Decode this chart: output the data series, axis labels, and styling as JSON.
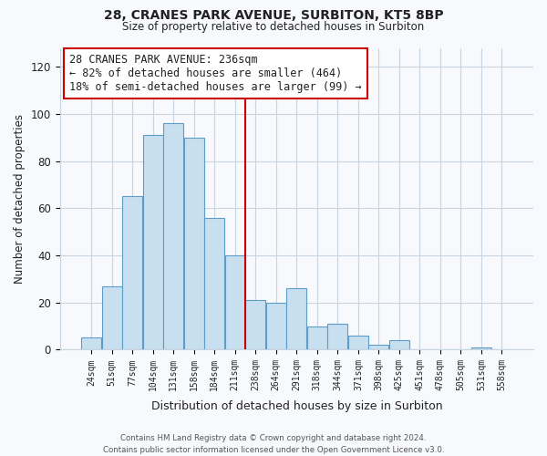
{
  "title": "28, CRANES PARK AVENUE, SURBITON, KT5 8BP",
  "subtitle": "Size of property relative to detached houses in Surbiton",
  "xlabel": "Distribution of detached houses by size in Surbiton",
  "ylabel": "Number of detached properties",
  "categories": [
    "24sqm",
    "51sqm",
    "77sqm",
    "104sqm",
    "131sqm",
    "158sqm",
    "184sqm",
    "211sqm",
    "238sqm",
    "264sqm",
    "291sqm",
    "318sqm",
    "344sqm",
    "371sqm",
    "398sqm",
    "425sqm",
    "451sqm",
    "478sqm",
    "505sqm",
    "531sqm",
    "558sqm"
  ],
  "values": [
    5,
    27,
    65,
    91,
    96,
    90,
    56,
    40,
    21,
    20,
    26,
    10,
    11,
    6,
    2,
    4,
    0,
    0,
    0,
    1,
    0
  ],
  "bar_color": "#c8dff0",
  "bar_edge_color": "#5b9dc9",
  "vline_x_index": 8,
  "vline_color": "#cc0000",
  "ylim": [
    0,
    128
  ],
  "yticks": [
    0,
    20,
    40,
    60,
    80,
    100,
    120
  ],
  "annotation_title": "28 CRANES PARK AVENUE: 236sqm",
  "annotation_line1": "← 82% of detached houses are smaller (464)",
  "annotation_line2": "18% of semi-detached houses are larger (99) →",
  "annotation_box_color": "#ffffff",
  "annotation_box_edge": "#cc0000",
  "footer1": "Contains HM Land Registry data © Crown copyright and database right 2024.",
  "footer2": "Contains public sector information licensed under the Open Government Licence v3.0.",
  "bg_color": "#f7f9fc",
  "grid_color": "#c8d4e0"
}
